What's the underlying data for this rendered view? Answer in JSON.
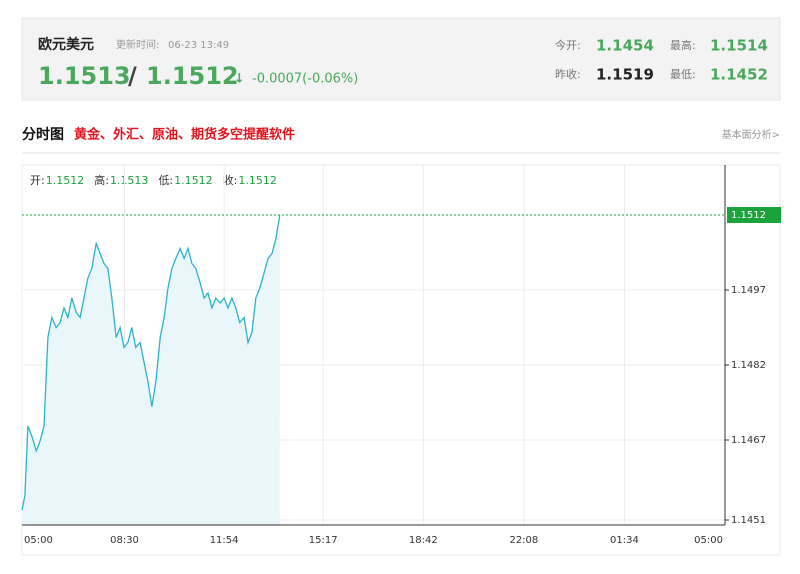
{
  "header": {
    "name": "欧元美元",
    "update_label": "更新时间:",
    "update_time": "06-23 13:49",
    "bid": "1.1513",
    "separator": "/",
    "ask": "1.1512",
    "arrow": "↓",
    "change": "-0.0007(-0.06%)",
    "stats": [
      {
        "label": "今开:",
        "value": "1.1454"
      },
      {
        "label": "最高:",
        "value": "1.1514"
      },
      {
        "label": "昨收:",
        "value": "1.1519"
      },
      {
        "label": "最低:",
        "value": "1.1452"
      }
    ]
  },
  "section": {
    "title": "分时图",
    "promo": "黄金、外汇、原油、期货多空提醒软件",
    "link": "基本面分析>"
  },
  "chart_data": {
    "type": "line",
    "ohlc": [
      {
        "label": "开:",
        "value": "1.1512"
      },
      {
        "label": "高:",
        "value": "1.1513"
      },
      {
        "label": "低:",
        "value": "1.1512"
      },
      {
        "label": "收:",
        "value": "1.1512"
      }
    ],
    "x": [
      0,
      6,
      12,
      20,
      29,
      37,
      45,
      53,
      61,
      70,
      78,
      86,
      94,
      102,
      111,
      119,
      127,
      135,
      143,
      152,
      160,
      168,
      176,
      184,
      193,
      201,
      209,
      217,
      225,
      233,
      242,
      250,
      258,
      266,
      274,
      283,
      291,
      299,
      307,
      315,
      324,
      332,
      340,
      348,
      356,
      365,
      373,
      381,
      389,
      397,
      406,
      414,
      422,
      430,
      438,
      446,
      455,
      463,
      471,
      479,
      487,
      496,
      504,
      512,
      520,
      528
    ],
    "series": [
      {
        "color": "#2bb3cc",
        "fill": "#e9f7fb",
        "values": [
          1.1453,
          1.14559,
          1.14698,
          1.14678,
          1.14648,
          1.14668,
          1.14698,
          1.14875,
          1.14915,
          1.14895,
          1.14905,
          1.14934,
          1.14915,
          1.14954,
          1.14925,
          1.14915,
          1.14954,
          1.14994,
          1.15013,
          1.15063,
          1.15043,
          1.15023,
          1.15013,
          1.14954,
          1.14875,
          1.14895,
          1.14855,
          1.14865,
          1.14895,
          1.14855,
          1.14865,
          1.14826,
          1.14786,
          1.14737,
          1.14786,
          1.14875,
          1.14915,
          1.14974,
          1.15013,
          1.15033,
          1.15053,
          1.15033,
          1.15053,
          1.15023,
          1.15013,
          1.14984,
          1.14954,
          1.14964,
          1.14934,
          1.14954,
          1.14944,
          1.14954,
          1.14934,
          1.14954,
          1.14934,
          1.14905,
          1.14915,
          1.14865,
          1.14885,
          1.14954,
          1.14974,
          1.15004,
          1.15033,
          1.15043,
          1.15073,
          1.1512
        ]
      }
    ],
    "xlim": [
      0,
      1440
    ],
    "xticks": [
      {
        "value": 0,
        "label": "05:00"
      },
      {
        "value": 210,
        "label": "08:30"
      },
      {
        "value": 414,
        "label": "11:54"
      },
      {
        "value": 617,
        "label": "15:17"
      },
      {
        "value": 822,
        "label": "18:42"
      },
      {
        "value": 1028,
        "label": "22:08"
      },
      {
        "value": 1234,
        "label": "01:34"
      },
      {
        "value": 1440,
        "label": "05:00"
      }
    ],
    "ylim": [
      1.145,
      1.1522
    ],
    "yticks": [
      1.1451,
      1.1467,
      1.1482,
      1.1497
    ],
    "reference_line": 1.1512,
    "reference_color": "#1aa33a",
    "grid": true
  }
}
